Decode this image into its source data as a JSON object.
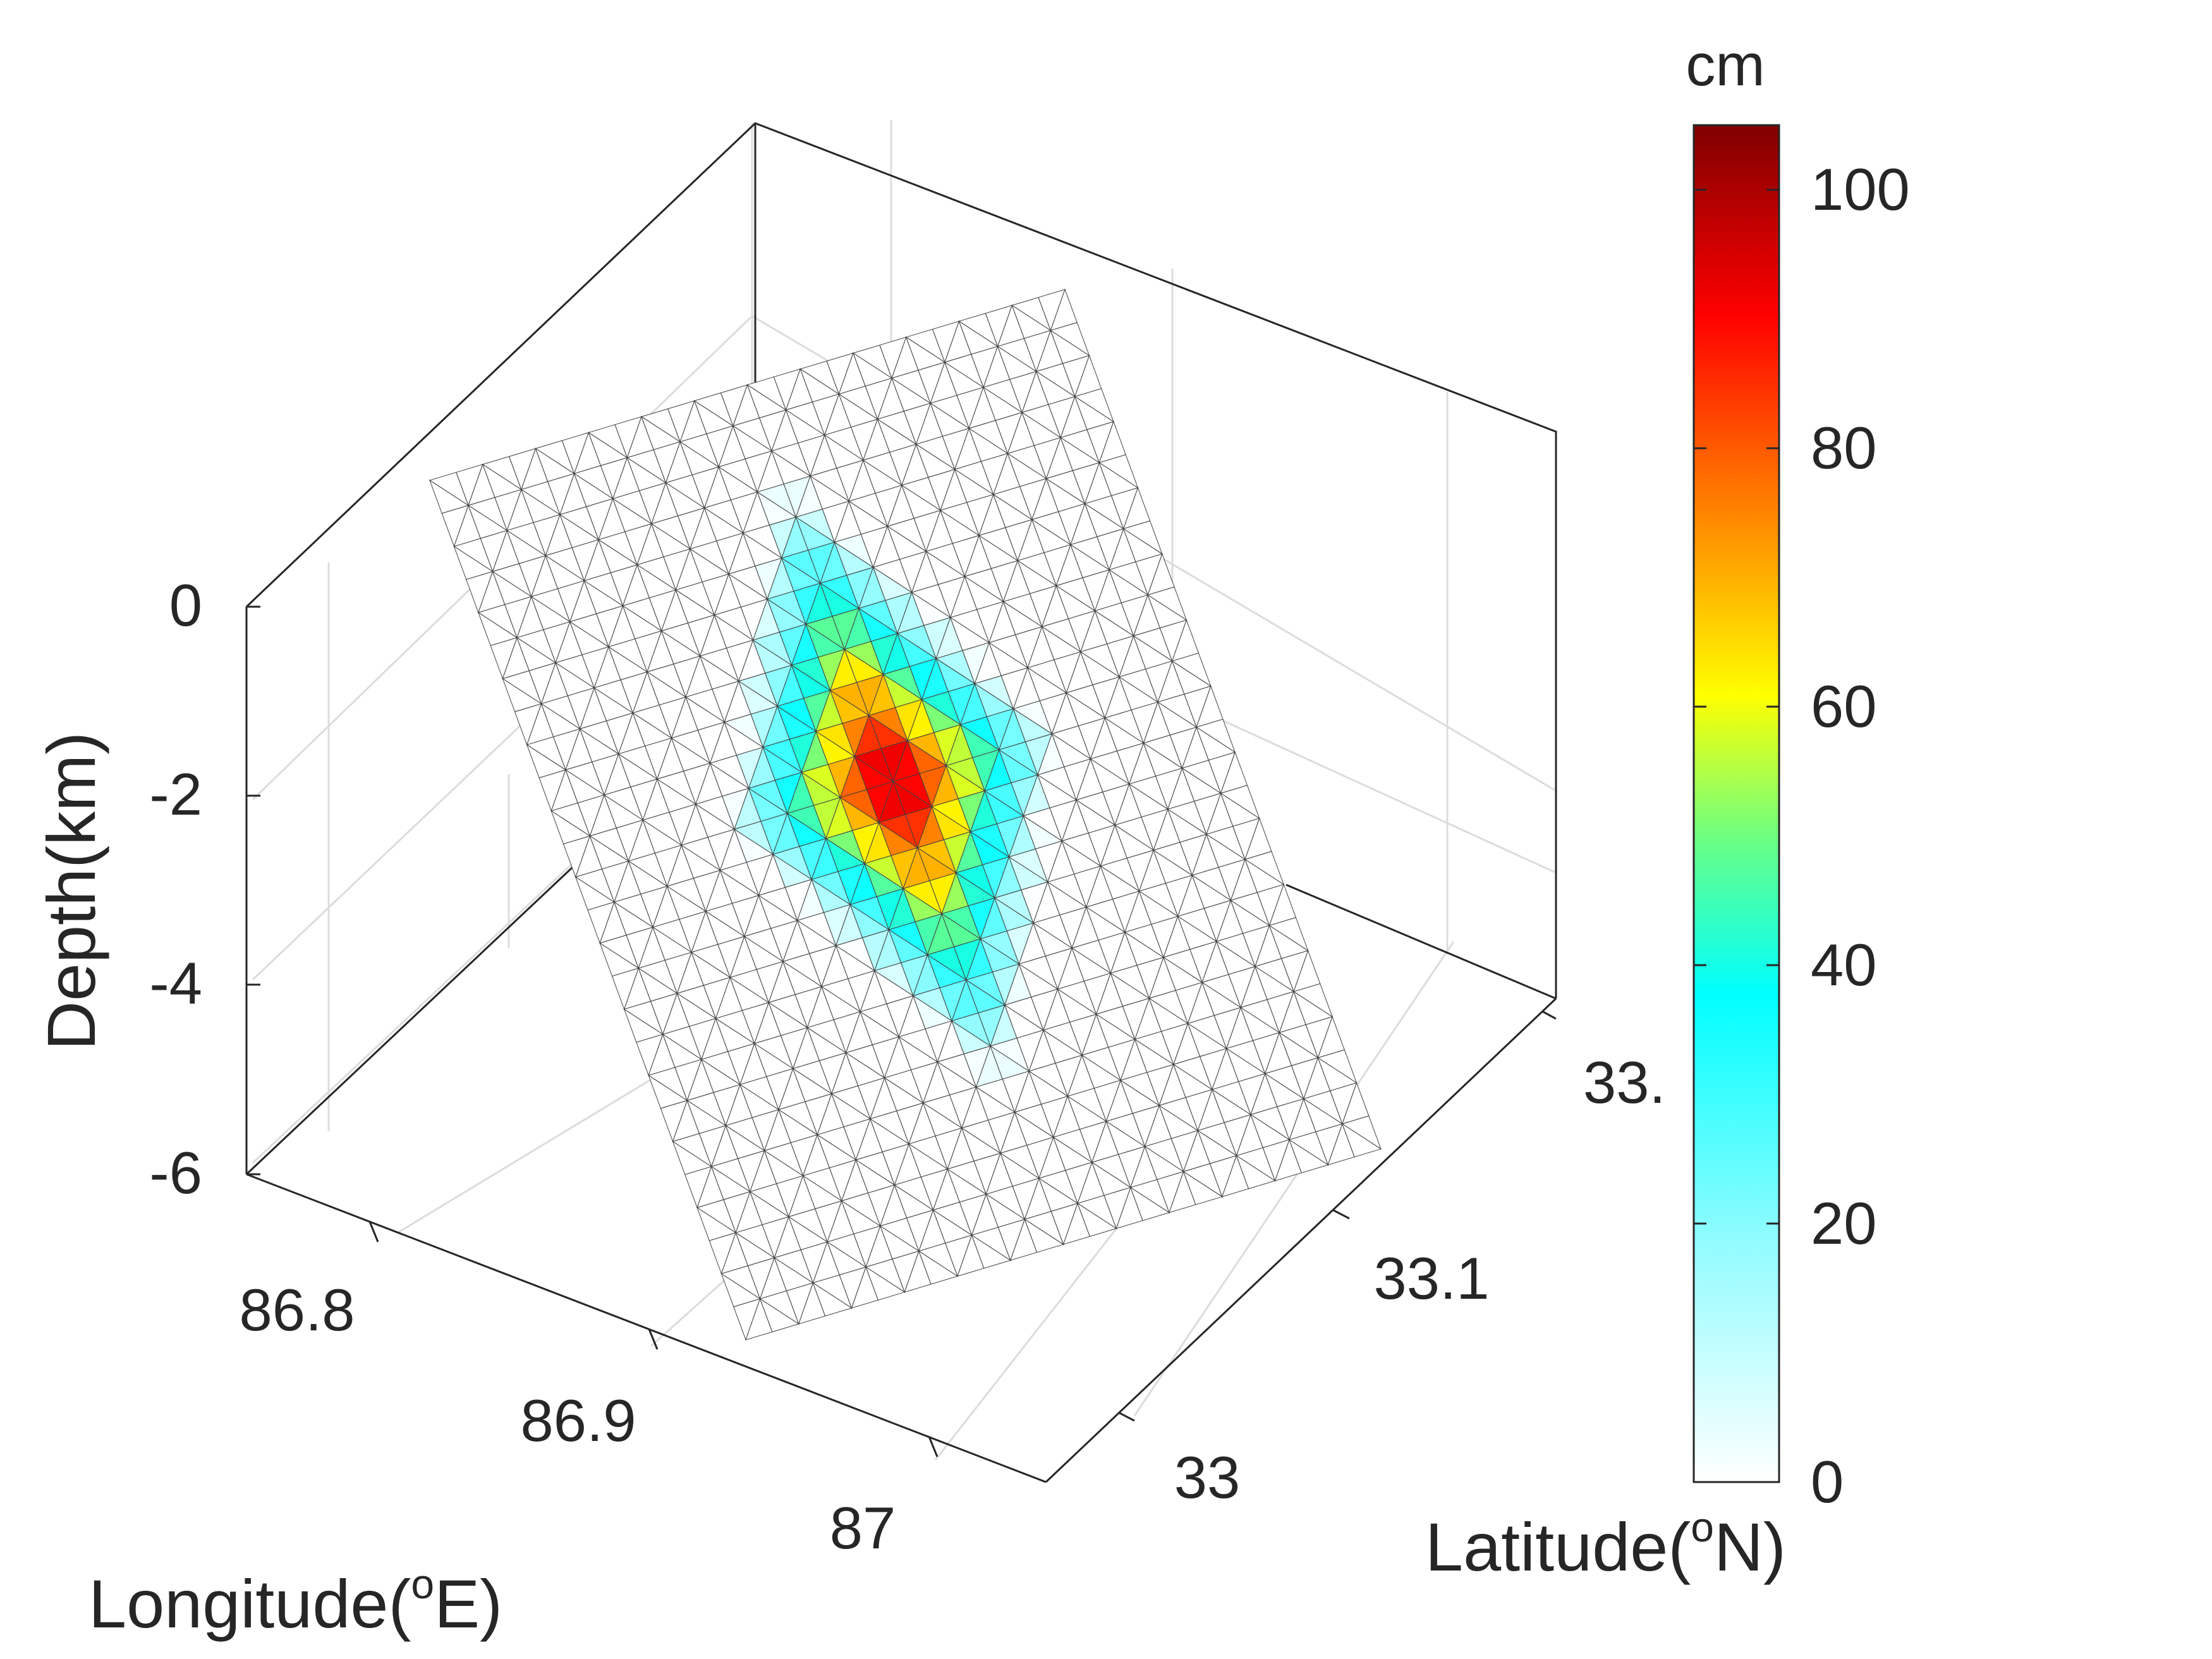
{
  "chart_data": {
    "type": "surface3d",
    "xlabel": "Longitude(",
    "xlabel_sup": "o",
    "xlabel_end": "E)",
    "ylabel": "Latitude(",
    "ylabel_sup": "o",
    "ylabel_end": "N)",
    "zlabel": "Depth(km)",
    "x_ticks": [
      "86.8",
      "86.9",
      "87"
    ],
    "y_ticks": [
      "33",
      "33.1",
      "33."
    ],
    "z_ticks": [
      "0",
      "-2",
      "-4",
      "-6"
    ],
    "xlim": [
      86.76,
      87.1
    ],
    "ylim": [
      32.95,
      33.22
    ],
    "zlim": [
      -6,
      0
    ],
    "grid": true,
    "mesh": {
      "along_strike_cells": 24,
      "down_dip_cells": 26,
      "triangulated": true
    },
    "slip": {
      "unit": "cm",
      "max": 105,
      "peak_strike_index": 12,
      "peak_dip_index": 12,
      "contour_ticks": [
        "0",
        "20",
        "40",
        "60",
        "80",
        "100"
      ],
      "color_range": [
        0,
        105
      ]
    },
    "colorbar": {
      "label": "cm",
      "ticks": [
        "0",
        "20",
        "40",
        "60",
        "80",
        "100"
      ],
      "tick_values": [
        0,
        20,
        40,
        60,
        80,
        100
      ],
      "colormap": "jet-white",
      "colors": [
        "#ffffff",
        "#00ffff",
        "#ffff00",
        "#ff0000",
        "#800000"
      ]
    }
  }
}
